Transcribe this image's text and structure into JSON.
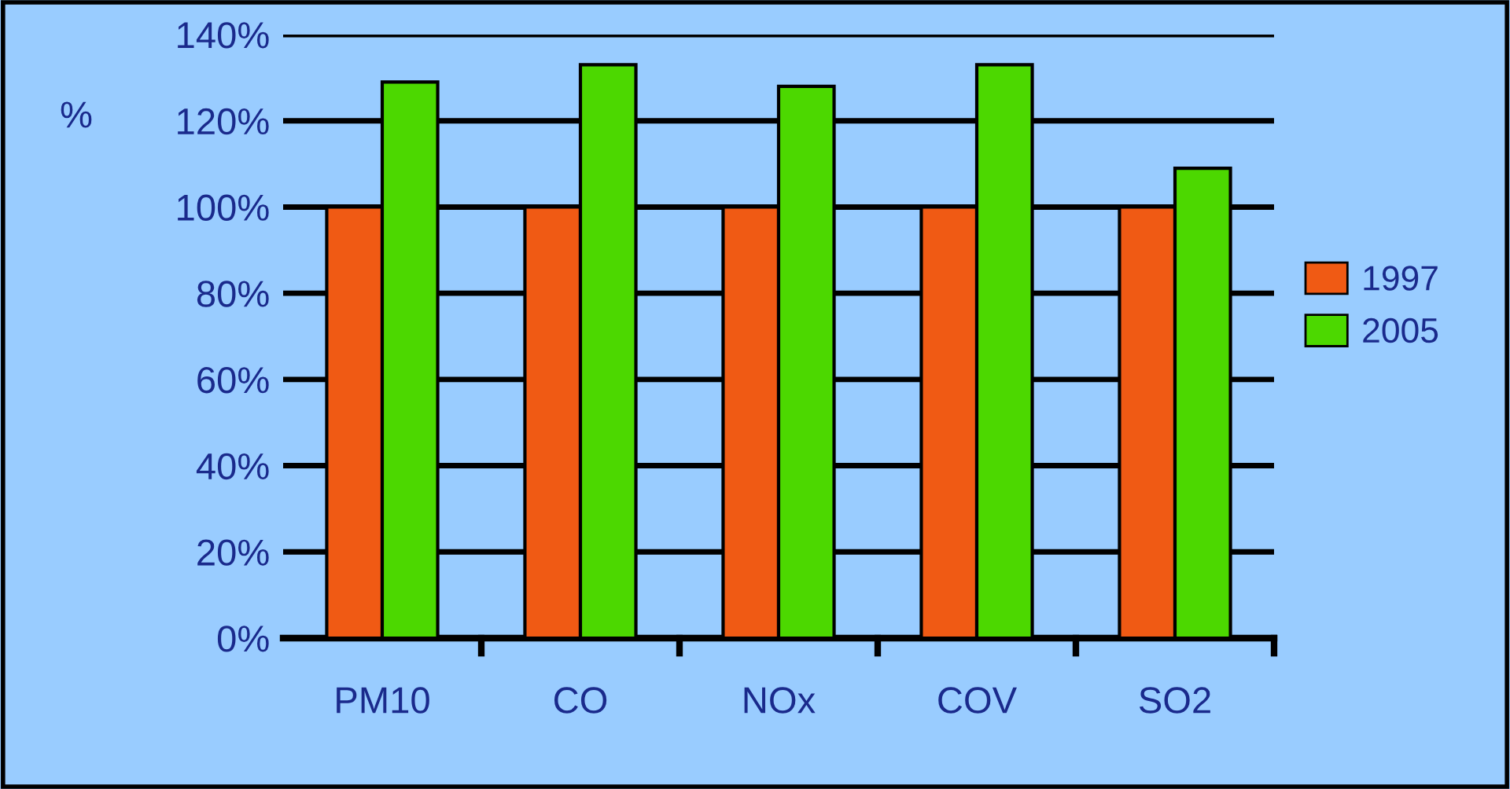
{
  "chart_data": {
    "type": "bar",
    "ylabel": "%",
    "categories": [
      "PM10",
      "CO",
      "NOx",
      "COV",
      "SO2"
    ],
    "series": [
      {
        "name": "1997",
        "color": "#f05a14",
        "values": [
          100,
          100,
          100,
          100,
          100
        ]
      },
      {
        "name": "2005",
        "color": "#4cd800",
        "values": [
          129,
          133,
          128,
          133,
          109
        ]
      }
    ],
    "ylim": [
      0,
      140
    ],
    "yticks": [
      {
        "value": 0,
        "label": "0%"
      },
      {
        "value": 20,
        "label": "20%"
      },
      {
        "value": 40,
        "label": "40%"
      },
      {
        "value": 60,
        "label": "60%"
      },
      {
        "value": 80,
        "label": "80%"
      },
      {
        "value": 100,
        "label": "100%"
      },
      {
        "value": 120,
        "label": "120%"
      },
      {
        "value": 140,
        "label": "140%"
      }
    ],
    "grid": "y",
    "legend": "right"
  }
}
